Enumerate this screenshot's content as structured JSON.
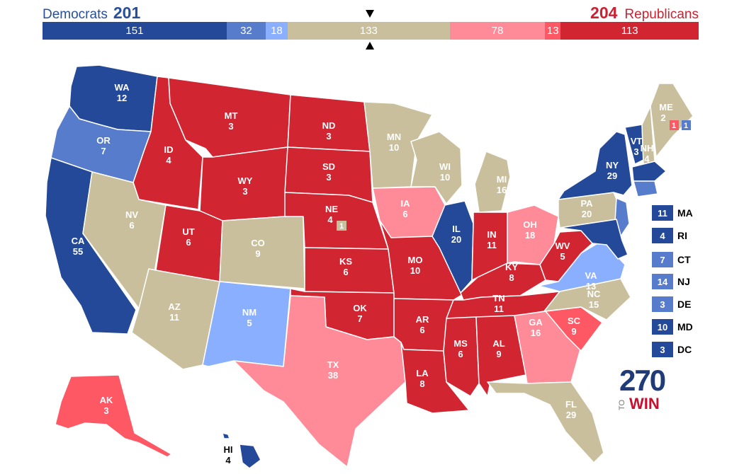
{
  "header": {
    "dem_label": "Democrats",
    "dem_total": "201",
    "rep_total": "204",
    "rep_label": "Republicans"
  },
  "bar_segments": [
    {
      "label": "151",
      "value": 151,
      "color": "#244999"
    },
    {
      "label": "32",
      "value": 32,
      "color": "#577ccc"
    },
    {
      "label": "18",
      "value": 18,
      "color": "#8aafff"
    },
    {
      "label": "133",
      "value": 133,
      "color": "#c9bf9c"
    },
    {
      "label": "78",
      "value": 78,
      "color": "#ff8b98"
    },
    {
      "label": "13",
      "value": 13,
      "color": "#ff5865"
    },
    {
      "label": "113",
      "value": 113,
      "color": "#d22532"
    }
  ],
  "colors": {
    "safe_dem": "#244999",
    "likely_dem": "#577ccc",
    "lean_dem": "#8aafff",
    "tossup": "#c9bf9c",
    "lean_rep": "#ff8b98",
    "likely_rep": "#ff5865",
    "safe_rep": "#d22532"
  },
  "states": [
    {
      "abbr": "WA",
      "ev": "12"
    },
    {
      "abbr": "OR",
      "ev": "7"
    },
    {
      "abbr": "CA",
      "ev": "55"
    },
    {
      "abbr": "ID",
      "ev": "4"
    },
    {
      "abbr": "NV",
      "ev": "6"
    },
    {
      "abbr": "MT",
      "ev": "3"
    },
    {
      "abbr": "WY",
      "ev": "3"
    },
    {
      "abbr": "UT",
      "ev": "6"
    },
    {
      "abbr": "AZ",
      "ev": "11"
    },
    {
      "abbr": "CO",
      "ev": "9"
    },
    {
      "abbr": "NM",
      "ev": "5"
    },
    {
      "abbr": "ND",
      "ev": "3"
    },
    {
      "abbr": "SD",
      "ev": "3"
    },
    {
      "abbr": "NE",
      "ev": "4"
    },
    {
      "abbr": "KS",
      "ev": "6"
    },
    {
      "abbr": "OK",
      "ev": "7"
    },
    {
      "abbr": "TX",
      "ev": "38"
    },
    {
      "abbr": "MN",
      "ev": "10"
    },
    {
      "abbr": "IA",
      "ev": "6"
    },
    {
      "abbr": "MO",
      "ev": "10"
    },
    {
      "abbr": "AR",
      "ev": "6"
    },
    {
      "abbr": "LA",
      "ev": "8"
    },
    {
      "abbr": "WI",
      "ev": "10"
    },
    {
      "abbr": "IL",
      "ev": "20"
    },
    {
      "abbr": "MI",
      "ev": "16"
    },
    {
      "abbr": "IN",
      "ev": "11"
    },
    {
      "abbr": "OH",
      "ev": "18"
    },
    {
      "abbr": "KY",
      "ev": "8"
    },
    {
      "abbr": "TN",
      "ev": "11"
    },
    {
      "abbr": "MS",
      "ev": "6"
    },
    {
      "abbr": "AL",
      "ev": "9"
    },
    {
      "abbr": "GA",
      "ev": "16"
    },
    {
      "abbr": "FL",
      "ev": "29"
    },
    {
      "abbr": "SC",
      "ev": "9"
    },
    {
      "abbr": "NC",
      "ev": "15"
    },
    {
      "abbr": "VA",
      "ev": "13"
    },
    {
      "abbr": "WV",
      "ev": "5"
    },
    {
      "abbr": "PA",
      "ev": "20"
    },
    {
      "abbr": "NY",
      "ev": "29"
    },
    {
      "abbr": "VT",
      "ev": "3"
    },
    {
      "abbr": "NH",
      "ev": "4"
    },
    {
      "abbr": "ME",
      "ev": "2"
    },
    {
      "abbr": "AK",
      "ev": "3"
    },
    {
      "abbr": "HI",
      "ev": "4"
    }
  ],
  "district_boxes": {
    "ne_cd": "1",
    "me_cd1": "1",
    "me_cd2": "1"
  },
  "small_states": [
    {
      "ev": "11",
      "abbr": "MA",
      "color": "#244999"
    },
    {
      "ev": "4",
      "abbr": "RI",
      "color": "#244999"
    },
    {
      "ev": "7",
      "abbr": "CT",
      "color": "#577ccc"
    },
    {
      "ev": "14",
      "abbr": "NJ",
      "color": "#577ccc"
    },
    {
      "ev": "3",
      "abbr": "DE",
      "color": "#577ccc"
    },
    {
      "ev": "10",
      "abbr": "MD",
      "color": "#244999"
    },
    {
      "ev": "3",
      "abbr": "DC",
      "color": "#244999"
    }
  ],
  "logo": {
    "num": "270",
    "to": "TO",
    "win": "WIN"
  }
}
